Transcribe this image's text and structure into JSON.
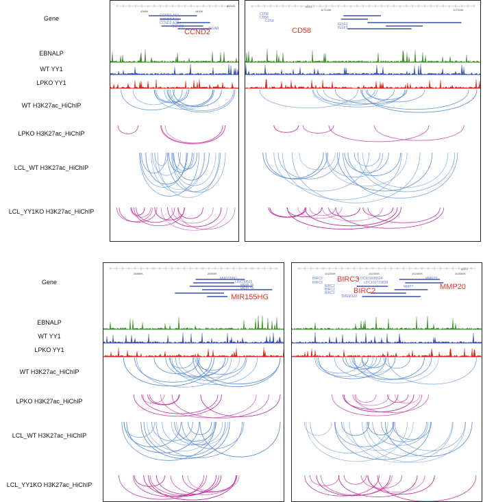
{
  "track_labels_top": [
    "Gene",
    "EBNALP",
    "WT YY1",
    "LPKO YY1",
    "WT H3K27ac_HiChIP",
    "LPKO H3K27ac_HiChIP",
    "LCL_WT H3K27ac_HiChIP",
    "LCL_YY1KO H3K27ac_HiChIP"
  ],
  "track_labels_bottom": [
    "Gene",
    "EBNALP",
    "WT YY1",
    "LPKO YY1",
    "WT H3K27ac_HiChIP",
    "LPKO H3K27ac_HiChIP",
    "LCL_WT H3K27ac_HiChIP",
    "LCL_YY1KO H3K27ac_HiChIP"
  ],
  "panels": {
    "ccnd2": {
      "highlight": "CCND2",
      "band": "p13.32",
      "ticks": [
        "4380K",
        "4400K"
      ],
      "genes": [
        "CCND2-AS1",
        "CCND2-AS1",
        "CCND2-AS1",
        "CCND2",
        "TIGAR"
      ]
    },
    "cd58": {
      "highlight": "CD58",
      "band": "p13.1",
      "ticks": [
        "117100K",
        "117200K"
      ],
      "genes": [
        "CD58",
        "CD58",
        "CD58",
        "IGSF3",
        "IGSF3"
      ]
    },
    "mir155hg": {
      "highlight": "MIR155HG",
      "ticks": [
        "26880K",
        "26900K"
      ],
      "genes": [
        "MIR155HG",
        "LINC00515",
        "MRPL39",
        "MRPL39"
      ]
    },
    "birc": {
      "highlight": [
        "BIRC3",
        "BIRC2",
        "MMP20"
      ],
      "band": "q22.2",
      "ticks": [
        "102200K",
        "102300K",
        "102400K",
        "102500K"
      ],
      "genes": [
        "BIRC3",
        "BIRC3",
        "BIRC2",
        "BIRC2",
        "BIRC2",
        "TMEM123",
        "LOC101928624",
        "LOC102723838",
        "MMP7",
        "MMP20"
      ]
    }
  },
  "colors": {
    "ebnalp": "#3f8f2a",
    "wt_yy1": "#3550b0",
    "lpko_yy1": "#d8261c",
    "wt_arc": "#5b8fd6",
    "lpko_arc": "#c1289a",
    "highlight": "#e8302a"
  }
}
